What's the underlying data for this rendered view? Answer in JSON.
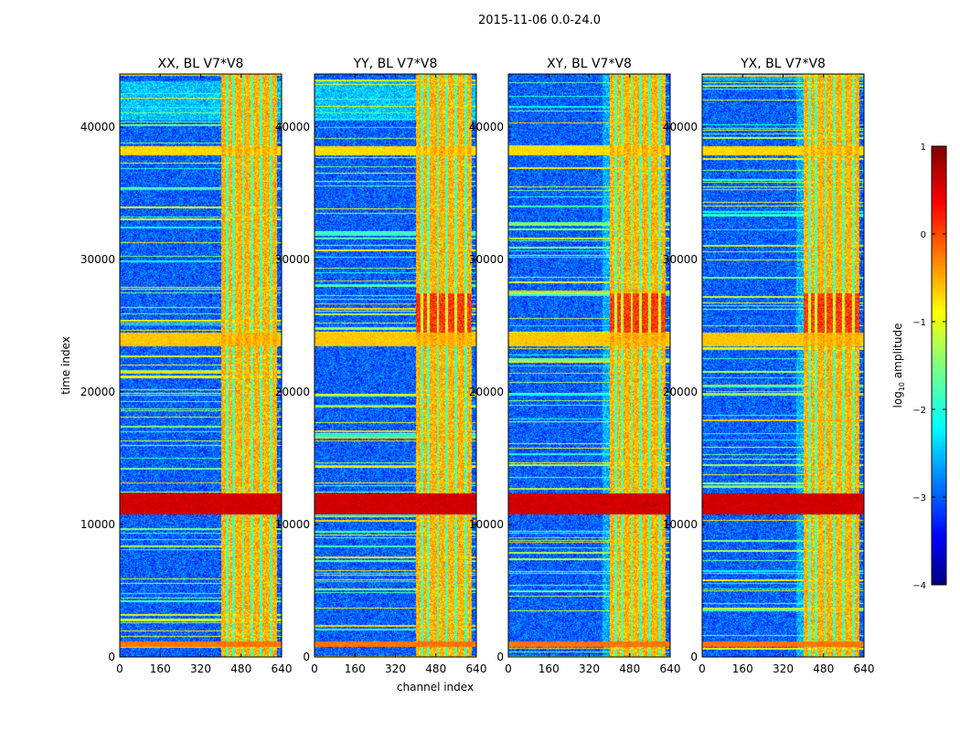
{
  "figure": {
    "suptitle": "2015-11-06 0.0-24.0"
  },
  "chart_data": {
    "type": "heatmap",
    "shared_xlabel": "channel index",
    "shared_ylabel": "time index",
    "x_ticks": [
      "0",
      "160",
      "320",
      "480",
      "640"
    ],
    "y_ticks": [
      "0",
      "10000",
      "20000",
      "30000",
      "40000"
    ],
    "xlim": [
      0,
      640
    ],
    "ylim": [
      0,
      44000
    ],
    "panels": [
      {
        "title": "XX, BL V7*V8",
        "polarization": "XX"
      },
      {
        "title": "YY, BL V7*V8",
        "polarization": "YY"
      },
      {
        "title": "XY, BL V7*V8",
        "polarization": "XY"
      },
      {
        "title": "YX, BL V7*V8",
        "polarization": "YX"
      }
    ],
    "colorbar": {
      "label_prefix": "log",
      "label_sub": "10",
      "label_suffix": " amplitude",
      "ticks": [
        "1",
        "0",
        "−1",
        "−2",
        "−3",
        "−4"
      ],
      "range": [
        -4,
        1
      ],
      "colormap": "jet"
    },
    "features": {
      "strong_band_channels": [
        400,
        620
      ],
      "strong_band_level": -0.5,
      "background_level": -2.9,
      "rfi_time_bands": [
        {
          "t0": 10800,
          "t1": 12400,
          "level": 0.6
        },
        {
          "t0": 800,
          "t1": 1200,
          "level": -0.2
        },
        {
          "t0": 23500,
          "t1": 24500,
          "level": -0.6
        },
        {
          "t0": 37900,
          "t1": 38600,
          "level": -0.7
        }
      ]
    }
  }
}
